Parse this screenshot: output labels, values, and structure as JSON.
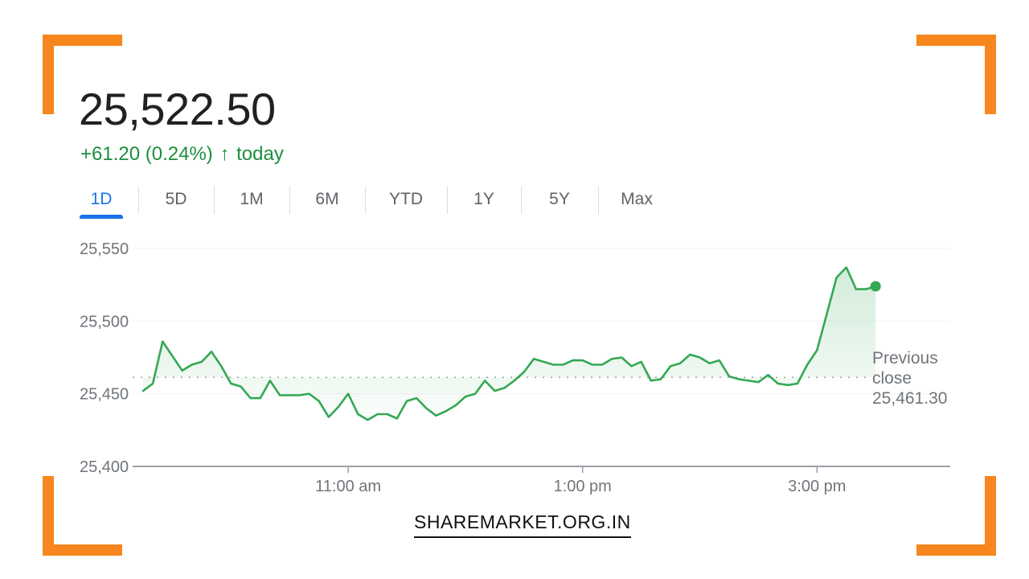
{
  "quote": {
    "price": "25,522.50",
    "change": "+61.20 (0.24%)",
    "arrow": "↑",
    "period": "today"
  },
  "tabs": [
    {
      "label": "1D",
      "active": true
    },
    {
      "label": "5D",
      "active": false
    },
    {
      "label": "1M",
      "active": false
    },
    {
      "label": "6M",
      "active": false
    },
    {
      "label": "YTD",
      "active": false
    },
    {
      "label": "1Y",
      "active": false
    },
    {
      "label": "5Y",
      "active": false
    },
    {
      "label": "Max",
      "active": false
    }
  ],
  "colors": {
    "line": "#34a853",
    "accent_tab": "#1a73e8",
    "positive_text": "#1e8e3e",
    "frame": "#f7861e"
  },
  "watermark": "SHAREMARKET.ORG.IN",
  "chart_data": {
    "type": "line",
    "title": "",
    "xlabel": "",
    "ylabel": "",
    "ylim": [
      25400,
      25550
    ],
    "xlim": [
      "9:15",
      "16:30"
    ],
    "yticks": [
      "25,550",
      "25,500",
      "25,450",
      "25,400"
    ],
    "ytick_values": [
      25550,
      25500,
      25450,
      25400
    ],
    "xticks": [
      "11:00 am",
      "1:00 pm",
      "3:00 pm"
    ],
    "xtick_values": [
      "11:00",
      "13:00",
      "15:00"
    ],
    "grid": "horizontal",
    "previous_close": {
      "label_lines": [
        "Previous",
        "close"
      ],
      "value_label": "25,461.30",
      "value": 25461.3
    },
    "series": [
      {
        "x": [
          "9:15",
          "9:20",
          "9:25",
          "9:30",
          "9:35",
          "9:40",
          "9:45",
          "9:50",
          "9:55",
          "10:00",
          "10:05",
          "10:10",
          "10:15",
          "10:20",
          "10:25",
          "10:30",
          "10:35",
          "10:40",
          "10:45",
          "10:50",
          "10:55",
          "11:00",
          "11:05",
          "11:10",
          "11:15",
          "11:20",
          "11:25",
          "11:30",
          "11:35",
          "11:40",
          "11:45",
          "11:50",
          "11:55",
          "12:00",
          "12:05",
          "12:10",
          "12:15",
          "12:20",
          "12:25",
          "12:30",
          "12:35",
          "12:40",
          "12:45",
          "12:50",
          "12:55",
          "13:00",
          "13:05",
          "13:10",
          "13:15",
          "13:20",
          "13:25",
          "13:30",
          "13:35",
          "13:40",
          "13:45",
          "13:50",
          "13:55",
          "14:00",
          "14:05",
          "14:10",
          "14:15",
          "14:20",
          "14:25",
          "14:30",
          "14:35",
          "14:40",
          "14:45",
          "14:50",
          "14:55",
          "15:00",
          "15:05",
          "15:10",
          "15:15",
          "15:20",
          "15:25",
          "15:30"
        ],
        "y": [
          25452,
          25457,
          25486,
          25476,
          25466,
          25470,
          25472,
          25479,
          25469,
          25457,
          25455,
          25447,
          25447,
          25459,
          25449,
          25449,
          25449,
          25450,
          25445,
          25434,
          25441,
          25450,
          25436,
          25432,
          25436,
          25436,
          25433,
          25445,
          25447,
          25440,
          25435,
          25438,
          25442,
          25448,
          25450,
          25459,
          25452,
          25454,
          25459,
          25465,
          25474,
          25472,
          25470,
          25470,
          25473,
          25473,
          25470,
          25470,
          25474,
          25475,
          25469,
          25472,
          25459,
          25460,
          25469,
          25471,
          25477,
          25475,
          25471,
          25473,
          25462,
          25460,
          25459,
          25458,
          25463,
          25457,
          25456,
          25457,
          25470,
          25480,
          25505,
          25530,
          25537,
          25522,
          25522,
          25524
        ]
      }
    ]
  }
}
